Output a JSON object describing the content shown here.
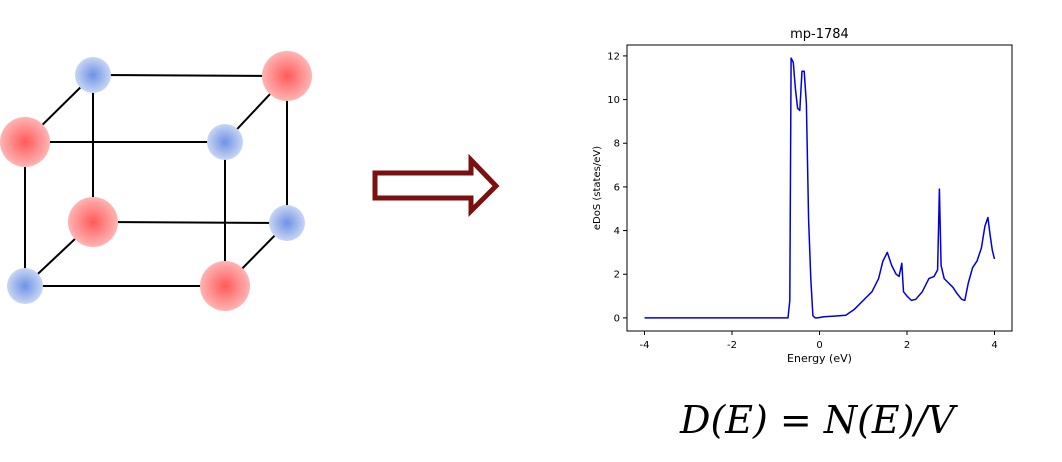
{
  "lattice": {
    "colors": {
      "red_atom": "#ff7f7f",
      "blue_atom": "#8ea9e8",
      "edge": "#000000"
    }
  },
  "arrow": {
    "color": "#7a1010"
  },
  "chart_data": {
    "type": "line",
    "title": "mp-1784",
    "xlabel": "Energy (eV)",
    "ylabel": "eDoS (states/eV)",
    "xlim": [
      -4.4,
      4.4
    ],
    "ylim": [
      -0.6,
      12.5
    ],
    "xticks": [
      -4,
      -2,
      0,
      2,
      4
    ],
    "yticks": [
      0,
      2,
      4,
      6,
      8,
      10,
      12
    ],
    "xticklabels": [
      "-4",
      "-2",
      "0",
      "2",
      "4"
    ],
    "yticklabels": [
      "0",
      "2",
      "4",
      "6",
      "8",
      "10",
      "12"
    ],
    "grid": false,
    "series": [
      {
        "color": "#0000dd",
        "x": [
          -4.0,
          -0.72,
          -0.68,
          -0.65,
          -0.6,
          -0.55,
          -0.5,
          -0.45,
          -0.4,
          -0.35,
          -0.3,
          -0.25,
          -0.2,
          -0.15,
          -0.1,
          -0.05,
          0.0,
          0.1,
          0.3,
          0.6,
          0.8,
          1.0,
          1.2,
          1.35,
          1.45,
          1.55,
          1.65,
          1.75,
          1.82,
          1.88,
          1.92,
          2.0,
          2.1,
          2.2,
          2.35,
          2.5,
          2.62,
          2.7,
          2.74,
          2.78,
          2.85,
          2.95,
          3.05,
          3.15,
          3.25,
          3.32,
          3.4,
          3.5,
          3.6,
          3.7,
          3.78,
          3.85,
          3.9,
          3.95,
          4.0
        ],
        "y": [
          0.0,
          0.0,
          0.8,
          11.9,
          11.7,
          10.5,
          9.6,
          9.5,
          11.3,
          11.3,
          9.8,
          4.5,
          1.8,
          0.1,
          0.0,
          0.0,
          0.02,
          0.05,
          0.08,
          0.12,
          0.4,
          0.8,
          1.2,
          1.8,
          2.6,
          3.0,
          2.4,
          2.0,
          1.9,
          2.5,
          1.2,
          1.0,
          0.8,
          0.85,
          1.2,
          1.8,
          1.9,
          2.2,
          5.9,
          2.4,
          1.8,
          1.6,
          1.4,
          1.1,
          0.85,
          0.8,
          1.6,
          2.3,
          2.6,
          3.2,
          4.2,
          4.6,
          3.8,
          3.1,
          2.7
        ]
      }
    ]
  },
  "formula": "D(E) = N(E)/V"
}
